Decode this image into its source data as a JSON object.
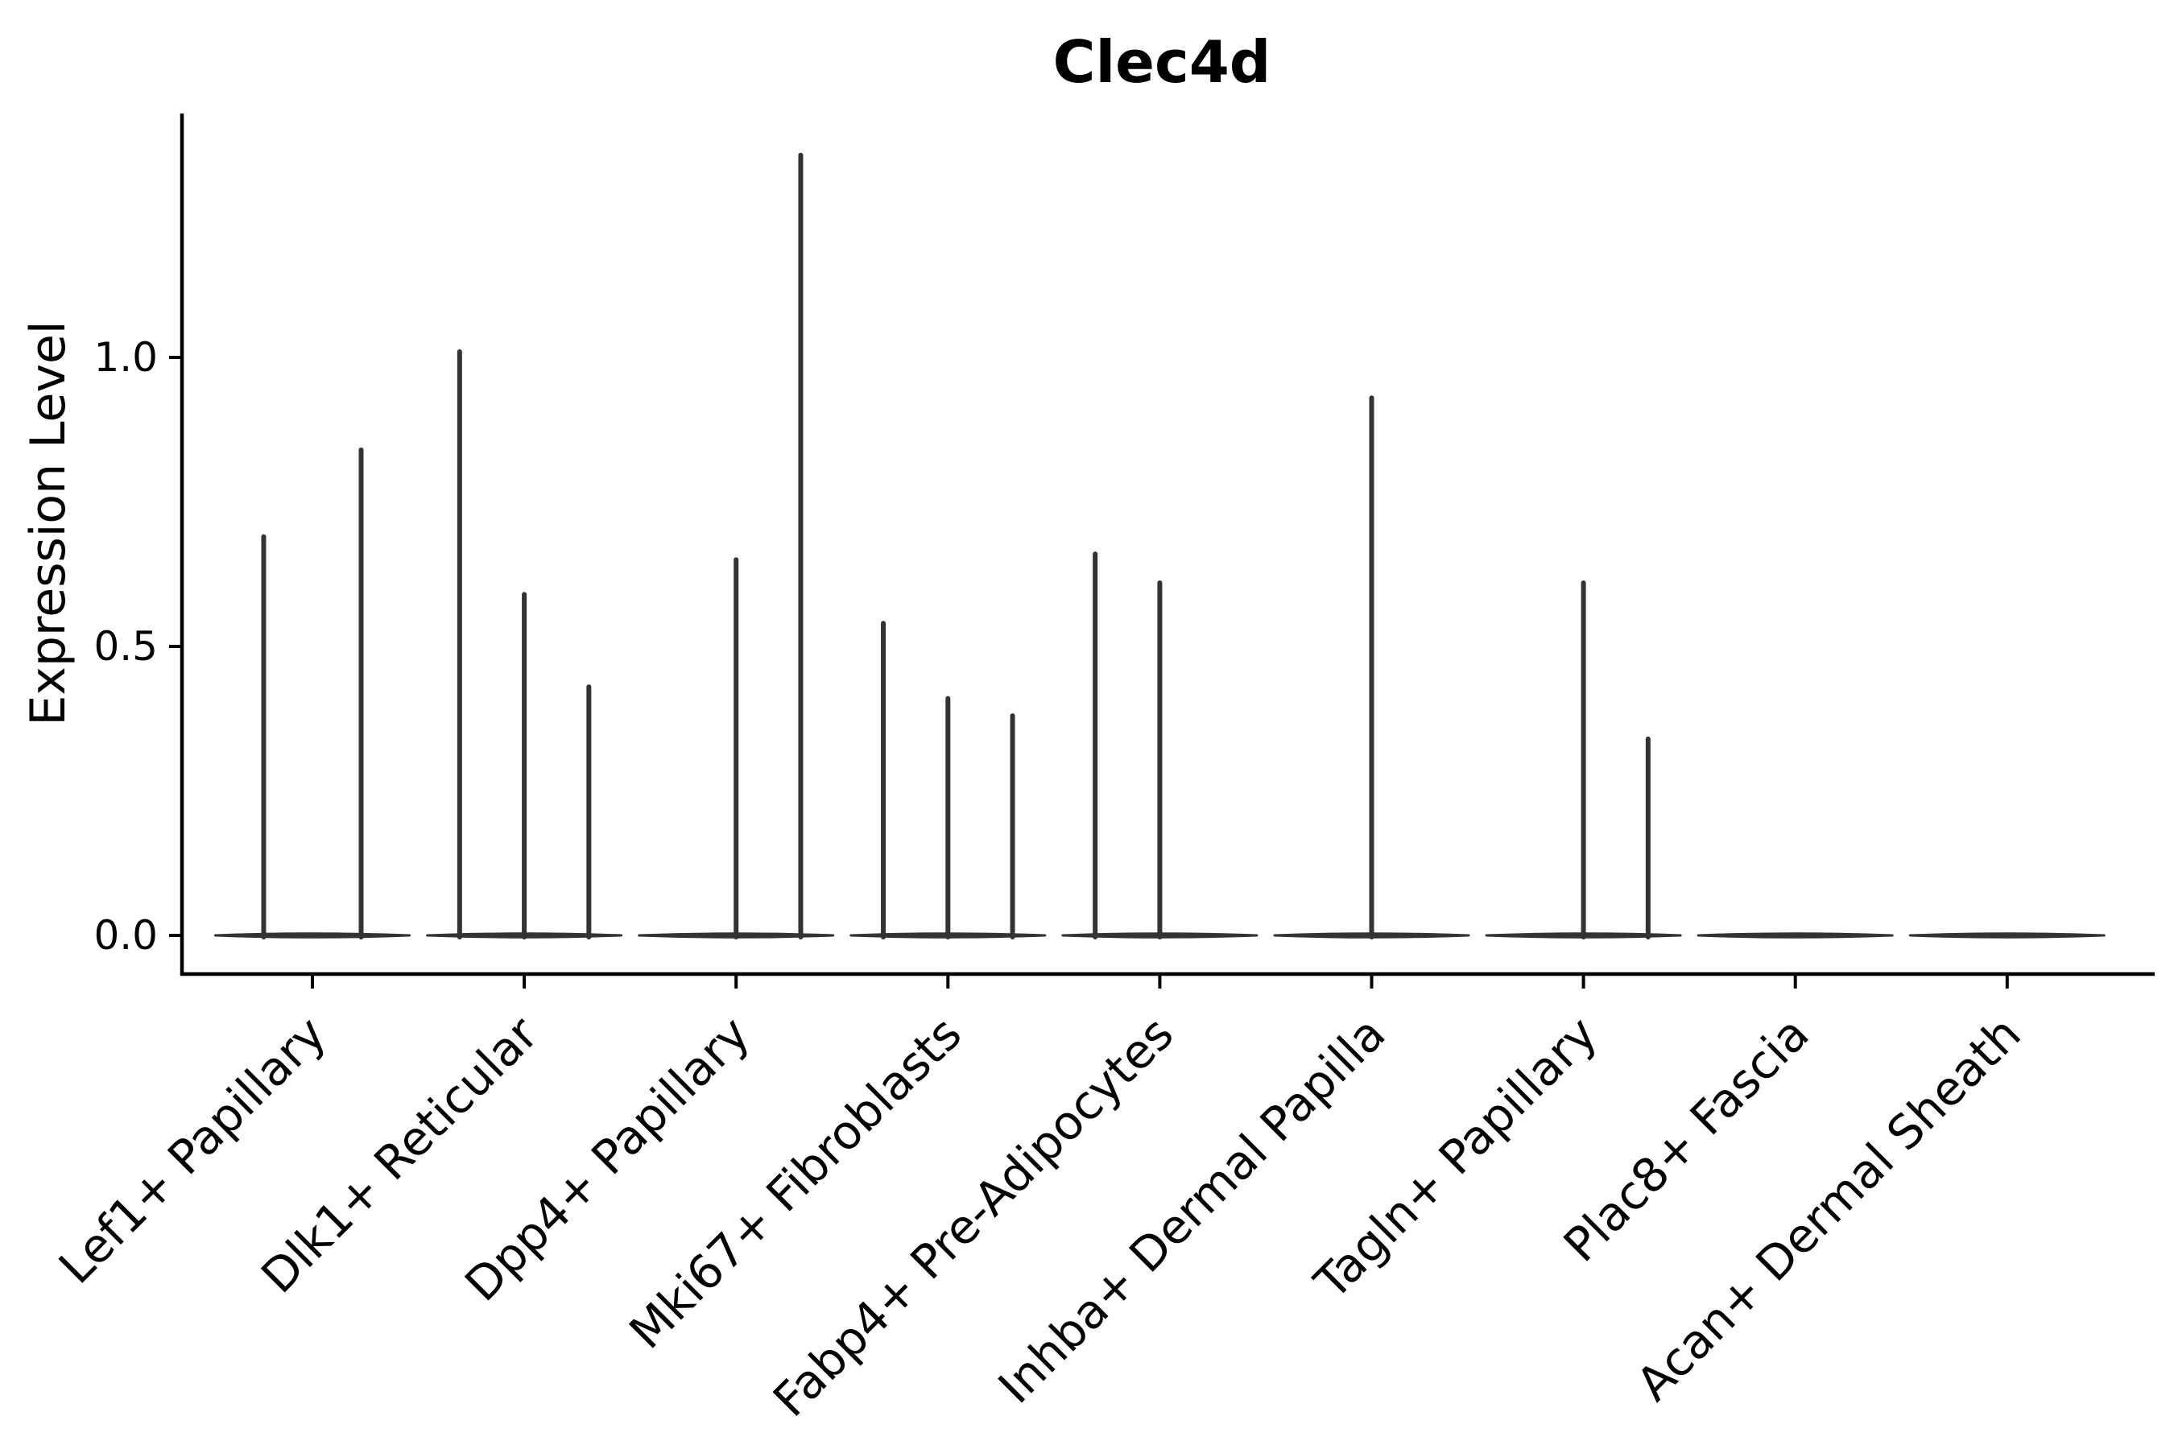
{
  "figure": {
    "background": "#ffffff"
  },
  "chart_data": {
    "type": "violin",
    "title": "Clec4d",
    "xlabel": "",
    "ylabel": "Expression Level",
    "legend": "none",
    "grid": false,
    "x_tick_rotation_deg": 45,
    "ylim": [
      -0.067,
      1.42
    ],
    "yticks": [
      {
        "value": 0.0,
        "label": "0.0"
      },
      {
        "value": 0.5,
        "label": "0.5"
      },
      {
        "value": 1.0,
        "label": "1.0"
      }
    ],
    "categories": [
      "Lef1+ Papillary",
      "Dlk1+ Reticular",
      "Dpp4+ Papillary",
      "Mki67+ Fibroblasts",
      "Fabp4+ Pre-Adipocytes",
      "Inhba+ Dermal Papilla",
      "Tagln+ Papillary",
      "Plac8+ Fascia",
      "Acan+ Dermal Sheath"
    ],
    "groups": [
      {
        "category": "Lef1+ Papillary",
        "violins": [
          {
            "offset": -0.23,
            "max_expression": 0.69
          },
          {
            "offset": 0.23,
            "max_expression": 0.84
          }
        ]
      },
      {
        "category": "Dlk1+ Reticular",
        "violins": [
          {
            "offset": -0.305,
            "max_expression": 1.01
          },
          {
            "offset": 0,
            "max_expression": 0.59
          },
          {
            "offset": 0.305,
            "max_expression": 0.43
          }
        ]
      },
      {
        "category": "Dpp4+ Papillary",
        "violins": [
          {
            "offset": 0,
            "max_expression": 0.65
          },
          {
            "offset": 0.305,
            "max_expression": 1.35
          }
        ]
      },
      {
        "category": "Mki67+ Fibroblasts",
        "violins": [
          {
            "offset": -0.305,
            "max_expression": 0.54
          },
          {
            "offset": 0,
            "max_expression": 0.41
          },
          {
            "offset": 0.305,
            "max_expression": 0.38
          }
        ]
      },
      {
        "category": "Fabp4+ Pre-Adipocytes",
        "violins": [
          {
            "offset": -0.305,
            "max_expression": 0.66
          },
          {
            "offset": 0,
            "max_expression": 0.61
          }
        ]
      },
      {
        "category": "Inhba+ Dermal Papilla",
        "violins": [
          {
            "offset": 0,
            "max_expression": 0.93
          }
        ]
      },
      {
        "category": "Tagln+ Papillary",
        "violins": [
          {
            "offset": 0,
            "max_expression": 0.61
          },
          {
            "offset": 0.305,
            "max_expression": 0.34
          }
        ]
      },
      {
        "category": "Plac8+ Fascia",
        "violins": []
      },
      {
        "category": "Acan+ Dermal Sheath",
        "violins": []
      }
    ],
    "baseline_value": 0.0,
    "base_halfwidth": 0.458,
    "violin_color": "#333333",
    "axis_color": "#000000"
  }
}
